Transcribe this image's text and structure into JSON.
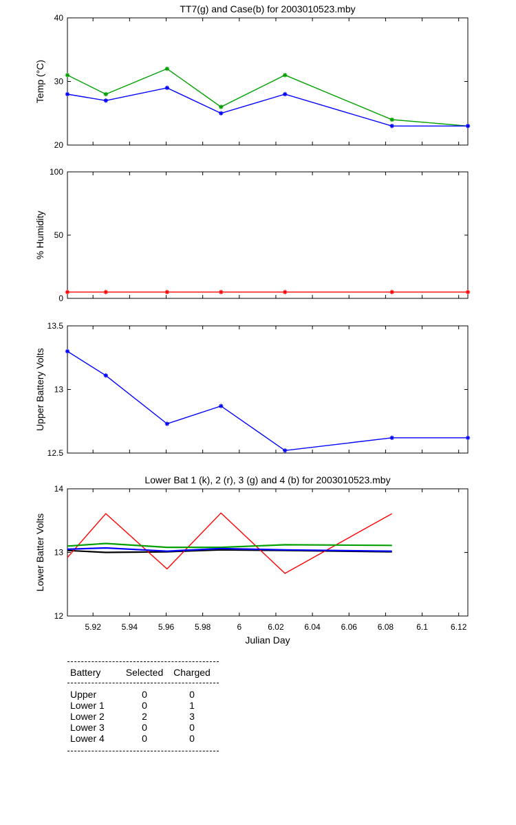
{
  "chart_data": [
    {
      "type": "line",
      "title": "TT7(g) and Case(b) for 2003010523.mby",
      "xlabel": "",
      "ylabel": "Temp  (°C)",
      "xlim": [
        5.906,
        6.125
      ],
      "ylim": [
        20,
        40
      ],
      "yticks": [
        "20",
        "30",
        "40"
      ],
      "grid": false,
      "series": [
        {
          "color": "#00a000",
          "marker": "*",
          "x": [
            5.906,
            5.927,
            5.9605,
            5.99,
            6.025,
            6.0835,
            6.125
          ],
          "values": [
            31,
            28,
            32,
            26,
            31,
            24,
            23
          ]
        },
        {
          "color": "#0000ff",
          "marker": "*",
          "x": [
            5.906,
            5.927,
            5.9605,
            5.99,
            6.025,
            6.0835,
            6.125
          ],
          "values": [
            28,
            27,
            29,
            25,
            28,
            23,
            23
          ]
        }
      ]
    },
    {
      "type": "line",
      "title": "",
      "xlabel": "",
      "ylabel": "% Humidity",
      "xlim": [
        5.906,
        6.125
      ],
      "ylim": [
        0,
        100
      ],
      "yticks": [
        "0",
        "50",
        "100"
      ],
      "grid": false,
      "series": [
        {
          "color": "#ff0000",
          "marker": "*",
          "x": [
            5.906,
            5.927,
            5.9605,
            5.99,
            6.025,
            6.0835,
            6.125
          ],
          "values": [
            5,
            5,
            5,
            5,
            5,
            5,
            5
          ]
        }
      ]
    },
    {
      "type": "line",
      "title": "",
      "xlabel": "",
      "ylabel": "Upper Battery Volts",
      "xlim": [
        5.906,
        6.125
      ],
      "ylim": [
        12.5,
        13.5
      ],
      "yticks": [
        "12.5",
        "13",
        "13.5"
      ],
      "grid": false,
      "series": [
        {
          "color": "#0000ff",
          "marker": "*",
          "x": [
            5.906,
            5.927,
            5.9605,
            5.99,
            6.025,
            6.0835,
            6.125
          ],
          "values": [
            13.3,
            13.11,
            12.73,
            12.87,
            12.52,
            12.62,
            12.62
          ]
        }
      ]
    },
    {
      "type": "line",
      "title": "Lower Bat 1 (k), 2 (r), 3 (g) and 4 (b) for 2003010523.mby",
      "xlabel": "Julian Day",
      "ylabel": "Lower Batter Volts",
      "xlim": [
        5.906,
        6.125
      ],
      "ylim": [
        12,
        14
      ],
      "yticks": [
        "12",
        "13",
        "14"
      ],
      "xticks": [
        "5.92",
        "5.94",
        "5.96",
        "5.98",
        "6",
        "6.02",
        "6.04",
        "6.06",
        "6.08",
        "6.1",
        "6.12"
      ],
      "grid": false,
      "series": [
        {
          "color": "#000000",
          "marker": "",
          "x": [
            5.906,
            5.927,
            5.9605,
            5.99,
            6.025,
            6.0835
          ],
          "values": [
            13.03,
            13.0,
            13.01,
            13.04,
            13.03,
            13.01
          ]
        },
        {
          "color": "#ff0000",
          "marker": "",
          "x": [
            5.906,
            5.927,
            5.9605,
            5.99,
            6.025,
            6.0835
          ],
          "values": [
            12.92,
            13.61,
            12.74,
            13.62,
            12.67,
            13.61
          ]
        },
        {
          "color": "#00a000",
          "marker": "",
          "x": [
            5.906,
            5.927,
            5.9605,
            5.99,
            6.025,
            6.0835
          ],
          "values": [
            13.1,
            13.14,
            13.08,
            13.08,
            13.12,
            13.11
          ]
        },
        {
          "color": "#0000ff",
          "marker": "",
          "x": [
            5.906,
            5.927,
            5.9605,
            5.99,
            6.025,
            6.0835
          ],
          "values": [
            13.05,
            13.07,
            13.02,
            13.06,
            13.04,
            13.02
          ]
        }
      ]
    }
  ],
  "table": {
    "headers": [
      "Battery",
      "Selected",
      "Charged"
    ],
    "rows": [
      [
        "Upper",
        "0",
        "0"
      ],
      [
        "Lower 1",
        "0",
        "1"
      ],
      [
        "Lower 2",
        "2",
        "3"
      ],
      [
        "Lower 3",
        "0",
        "0"
      ],
      [
        "Lower 4",
        "0",
        "0"
      ]
    ]
  }
}
